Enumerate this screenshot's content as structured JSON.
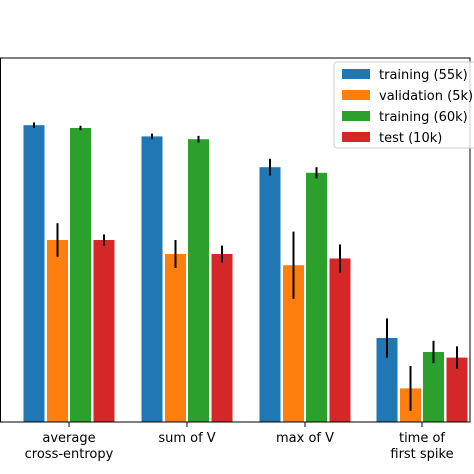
{
  "chart_data": {
    "type": "bar",
    "categories": [
      "average\ncross-entropy",
      "sum of V",
      "max of V",
      "time of\nfirst spike"
    ],
    "series": [
      {
        "name": "training (55k)",
        "color": "#1f77b4",
        "values": [
          0.83,
          0.81,
          0.755,
          0.45
        ],
        "errors": [
          0.005,
          0.005,
          0.015,
          0.035
        ]
      },
      {
        "name": "validation (5k)",
        "color": "#ff7f0e",
        "values": [
          0.625,
          0.6,
          0.58,
          0.36
        ],
        "errors": [
          0.03,
          0.025,
          0.06,
          0.04
        ]
      },
      {
        "name": "training (60k)",
        "color": "#2ca02c",
        "values": [
          0.825,
          0.805,
          0.745,
          0.425
        ],
        "errors": [
          0.004,
          0.006,
          0.01,
          0.02
        ]
      },
      {
        "name": "test (10k)",
        "color": "#d62728",
        "values": [
          0.625,
          0.6,
          0.592,
          0.415
        ],
        "errors": [
          0.01,
          0.015,
          0.025,
          0.02
        ]
      }
    ],
    "title": "",
    "xlabel": "",
    "ylabel": "",
    "ylim": [
      0.3,
      0.95
    ],
    "grid": false,
    "legend": "top-right"
  }
}
